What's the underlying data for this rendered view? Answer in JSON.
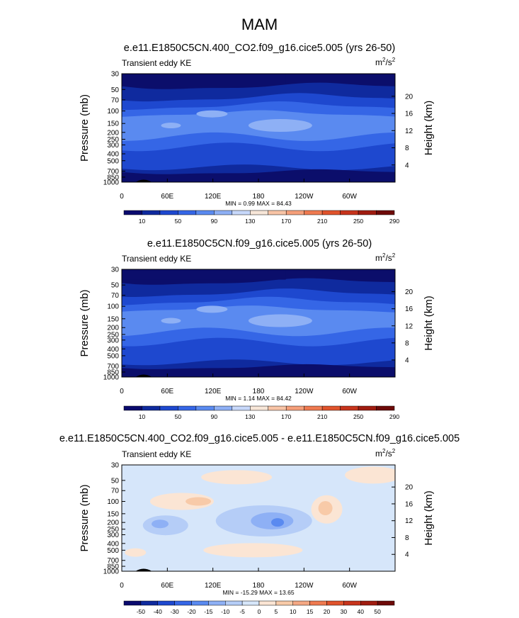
{
  "figure": {
    "title": "MAM"
  },
  "chart_data": [
    {
      "type": "heatmap",
      "title": "e.e11.E1850C5CN.400_CO2.f09_g16.cice5.005 (yrs 26-50)",
      "subtitle": "Transient eddy KE",
      "units": "m2/s2",
      "ylabel": "Pressure (mb)",
      "ylabel_right": "Height (km)",
      "x_ticks": [
        "0",
        "60E",
        "120E",
        "180",
        "120W",
        "60W"
      ],
      "y_ticks": [
        "30",
        "50",
        "70",
        "100",
        "150",
        "200",
        "250",
        "300",
        "400",
        "500",
        "700",
        "850",
        "1000"
      ],
      "y_ticks_right": [
        "20",
        "16",
        "12",
        "8",
        "4"
      ],
      "stats": "MIN =   0.99  MAX =  84.43",
      "colorbar": {
        "labels": [
          "10",
          "50",
          "90",
          "130",
          "170",
          "210",
          "250",
          "290"
        ],
        "colors": [
          "#0a0a6e",
          "#0f2a9e",
          "#1e48cf",
          "#3566e6",
          "#5a8af0",
          "#8eb0f5",
          "#c7d8fa",
          "#f7e6d8",
          "#f8c4a6",
          "#f59f7a",
          "#ef7a50",
          "#e0532c",
          "#c7341c",
          "#a01c10",
          "#6e0a08"
        ]
      },
      "palette": [
        "#0b0e6b",
        "#0f2a9e",
        "#1e48cf",
        "#3566e6",
        "#5a8af0",
        "#8eb0f5"
      ]
    },
    {
      "type": "heatmap",
      "title": "e.e11.E1850C5CN.f09_g16.cice5.005 (yrs 26-50)",
      "subtitle": "Transient eddy KE",
      "units": "m2/s2",
      "ylabel": "Pressure (mb)",
      "ylabel_right": "Height (km)",
      "x_ticks": [
        "0",
        "60E",
        "120E",
        "180",
        "120W",
        "60W"
      ],
      "y_ticks": [
        "30",
        "50",
        "70",
        "100",
        "150",
        "200",
        "250",
        "300",
        "400",
        "500",
        "700",
        "850",
        "1000"
      ],
      "y_ticks_right": [
        "20",
        "16",
        "12",
        "8",
        "4"
      ],
      "stats": "MIN =   1.14  MAX =  84.42",
      "colorbar": {
        "labels": [
          "10",
          "50",
          "90",
          "130",
          "170",
          "210",
          "250",
          "290"
        ],
        "colors": [
          "#0a0a6e",
          "#0f2a9e",
          "#1e48cf",
          "#3566e6",
          "#5a8af0",
          "#8eb0f5",
          "#c7d8fa",
          "#f7e6d8",
          "#f8c4a6",
          "#f59f7a",
          "#ef7a50",
          "#e0532c",
          "#c7341c",
          "#a01c10",
          "#6e0a08"
        ]
      },
      "palette": [
        "#0b0e6b",
        "#0f2a9e",
        "#1e48cf",
        "#3566e6",
        "#5a8af0",
        "#8eb0f5"
      ]
    },
    {
      "type": "heatmap",
      "title": "e.e11.E1850C5CN.400_CO2.f09_g16.cice5.005 - e.e11.E1850C5CN.f09_g16.cice5.005",
      "subtitle": "Transient eddy KE",
      "units": "m2/s2",
      "ylabel": "Pressure (mb)",
      "ylabel_right": "Height (km)",
      "x_ticks": [
        "0",
        "60E",
        "120E",
        "180",
        "120W",
        "60W"
      ],
      "y_ticks": [
        "30",
        "50",
        "70",
        "100",
        "150",
        "200",
        "250",
        "300",
        "400",
        "500",
        "700",
        "850",
        "1000"
      ],
      "y_ticks_right": [
        "20",
        "16",
        "12",
        "8",
        "4"
      ],
      "stats": "MIN = -15.29  MAX =  13.65",
      "colorbar": {
        "labels": [
          "-50",
          "-40",
          "-30",
          "-20",
          "-15",
          "-10",
          "-5",
          "0",
          "5",
          "10",
          "15",
          "20",
          "30",
          "40",
          "50"
        ],
        "colors": [
          "#0a0a6e",
          "#0f2a9e",
          "#1e48cf",
          "#3566e6",
          "#5a8af0",
          "#8eb0f5",
          "#b5cdf7",
          "#d6e6fa",
          "#fbe5d4",
          "#f8caa8",
          "#f4a884",
          "#ef7a50",
          "#e0532c",
          "#c7341c",
          "#a01c10",
          "#6e0a08"
        ]
      },
      "palette": [
        "#d6e6fa",
        "#fbe5d4",
        "#b5cdf7",
        "#8eb0f5",
        "#5a8af0",
        "#f8caa8",
        "#f4a884"
      ]
    }
  ]
}
